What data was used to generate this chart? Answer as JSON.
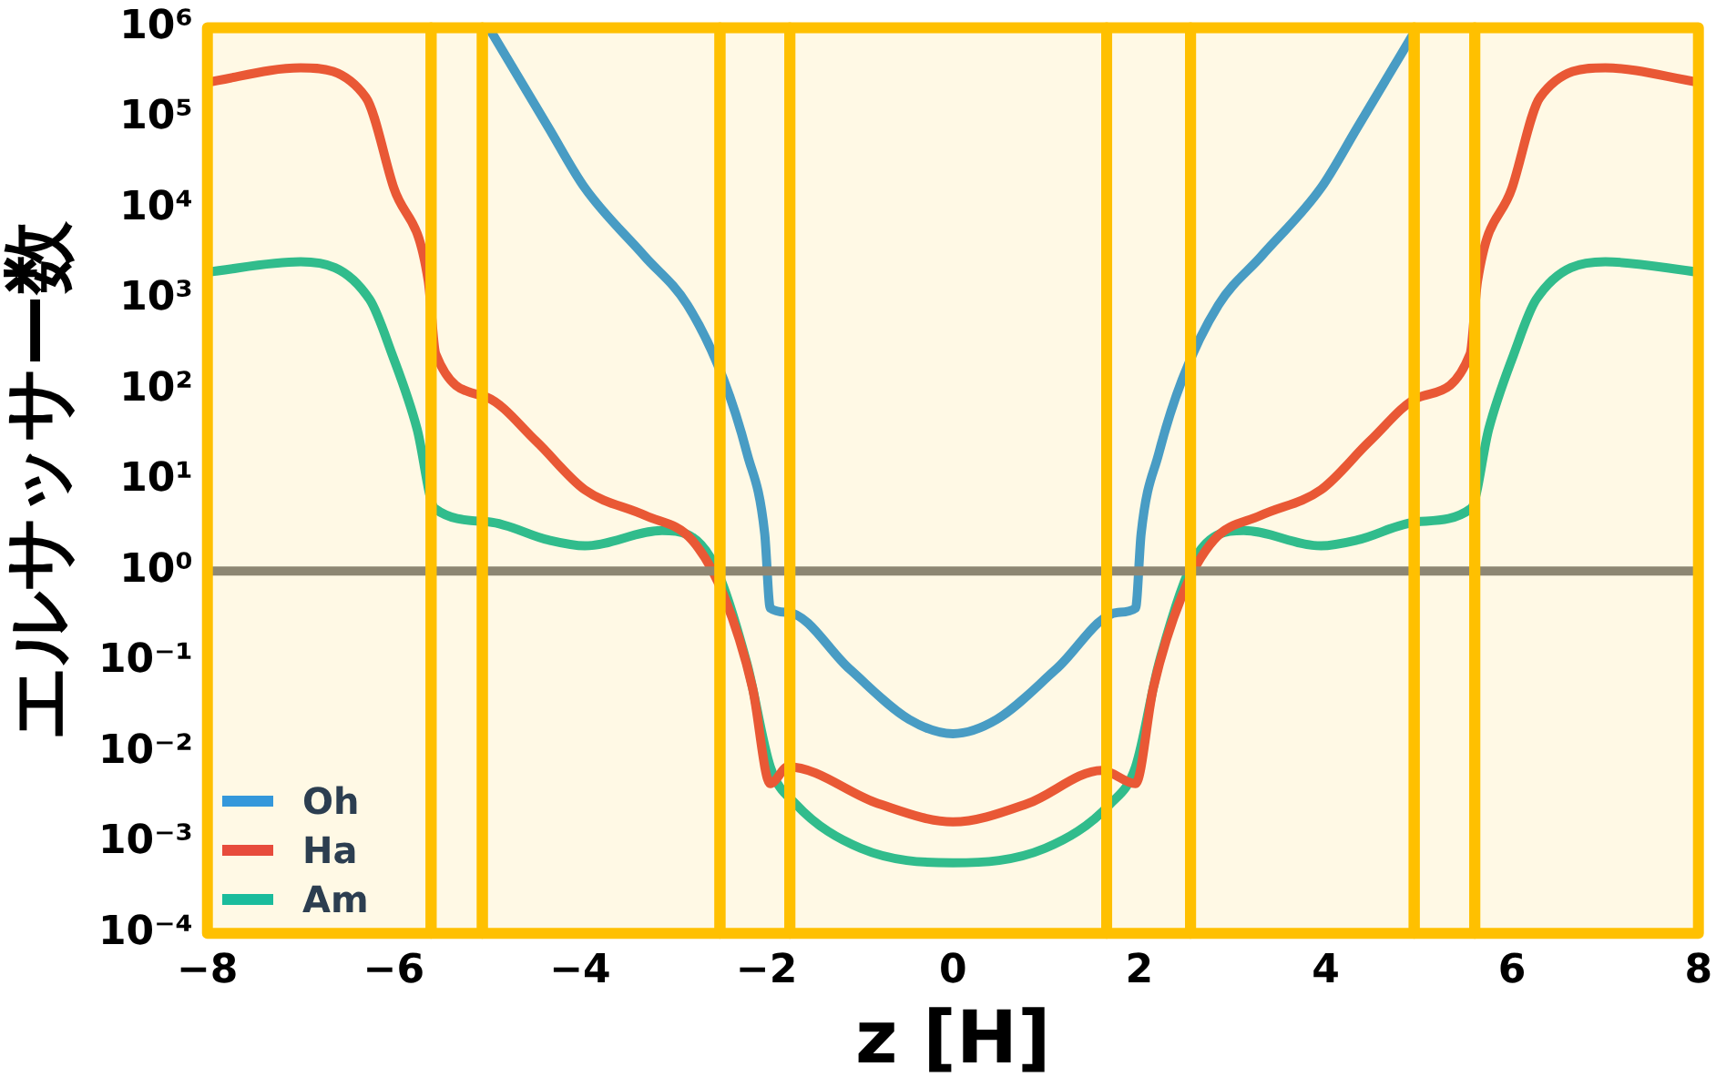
{
  "chart_data": {
    "type": "line",
    "ylabel": "エルサッサー数",
    "xlabel": "z [H]",
    "log": "y",
    "grid": false,
    "legend": "bottom left",
    "marker": "none",
    "line_style": "solid",
    "xlim": [
      -8,
      8
    ],
    "xticks": [
      {
        "value": -8,
        "label": "−8"
      },
      {
        "value": -6,
        "label": "−6"
      },
      {
        "value": -4,
        "label": "−4"
      },
      {
        "value": -2,
        "label": "−2"
      },
      0,
      2,
      4,
      6,
      8
    ],
    "ylim": [
      0.0001,
      1000000
    ],
    "yticks": [
      {
        "value": 0.0001,
        "label": "10⁻⁴"
      },
      {
        "value": 0.001,
        "label": "10⁻³"
      },
      {
        "value": 0.01,
        "label": "10⁻²"
      },
      {
        "value": 0.1,
        "label": "10⁻¹"
      },
      {
        "value": 1,
        "label": "10⁰"
      },
      {
        "value": 10,
        "label": "10¹"
      },
      {
        "value": 100,
        "label": "10²"
      },
      {
        "value": 1000,
        "label": "10³"
      },
      {
        "value": 10000,
        "label": "10⁴"
      },
      {
        "value": 100000,
        "label": "10⁵"
      },
      {
        "value": 1000000,
        "label": "10⁶"
      }
    ],
    "series": [
      {
        "name": "Oh",
        "color": "#3498db",
        "x": [
          -4.98,
          -4.34,
          -3.95,
          -3.31,
          -2.85,
          -2.46,
          -2.21,
          -2.02,
          -1.96,
          -1.77,
          -1.11,
          -0.47,
          0,
          0.47,
          1.11,
          1.77,
          1.96,
          2.02,
          2.21,
          2.46,
          2.85,
          3.31,
          3.95,
          4.34,
          4.98
        ],
        "values": [
          1000000,
          79000,
          17000,
          3000,
          870,
          130,
          20,
          2.6,
          0.39,
          0.35,
          0.083,
          0.023,
          0.016,
          0.023,
          0.083,
          0.35,
          0.39,
          2.6,
          20,
          130,
          870,
          3000,
          17000,
          79000,
          1000000
        ]
      },
      {
        "name": "Ha",
        "color": "#e74c3c",
        "x": [
          -8,
          -7,
          -6.3,
          -6,
          -5.63,
          -5.55,
          -5,
          -4.47,
          -3.95,
          -3.3,
          -2.8,
          -2.46,
          -2.15,
          -1.96,
          -1.77,
          -0.8,
          0,
          0.8,
          1.6,
          1.96,
          2.15,
          2.46,
          2.8,
          3.3,
          3.95,
          4.47,
          5,
          5.55,
          5.63,
          6,
          6.3,
          7,
          8
        ],
        "values": [
          250000,
          360000,
          170000,
          17000,
          1600,
          250,
          83,
          27,
          7.9,
          4.1,
          2.2,
          0.54,
          0.051,
          0.0045,
          0.0069,
          0.0027,
          0.0017,
          0.0027,
          0.0063,
          0.0045,
          0.051,
          0.54,
          2.2,
          4.1,
          7.9,
          27,
          83,
          250,
          1600,
          17000,
          170000,
          360000,
          250000
        ]
      },
      {
        "name": "Am",
        "color": "#1abc9c",
        "x": [
          -8,
          -7,
          -6.26,
          -6.02,
          -5.75,
          -5.56,
          -4.98,
          -4.34,
          -3.95,
          -3.12,
          -2.6,
          -2.21,
          -1.96,
          -1.69,
          -0.99,
          0,
          0.99,
          1.69,
          1.96,
          2.21,
          2.6,
          3.12,
          3.95,
          4.34,
          4.98,
          5.56,
          5.75,
          6.02,
          6.26,
          7,
          8
        ],
        "values": [
          2000,
          2600,
          1000,
          250,
          37,
          4.9,
          3.5,
          2.2,
          1.9,
          2.8,
          1.4,
          0.095,
          0.0069,
          0.0027,
          0.00087,
          0.0006,
          0.00087,
          0.0027,
          0.0069,
          0.095,
          1.4,
          2.8,
          1.9,
          2.2,
          3.5,
          4.9,
          37,
          250,
          1000,
          2600,
          2000
        ]
      }
    ],
    "ref_lines": [
      {
        "axis": "y",
        "value": 1,
        "label": null,
        "color": "#808080"
      }
    ],
    "bands": [
      {
        "axis": "x",
        "from": -8,
        "to": -5.6,
        "label": null,
        "color": "#ffc000"
      },
      {
        "axis": "x",
        "from": -5.6,
        "to": -5.05,
        "label": null,
        "color": "#ffc000"
      },
      {
        "axis": "x",
        "from": -5.05,
        "to": -2.5,
        "label": null,
        "color": "#ffc000"
      },
      {
        "axis": "x",
        "from": -2.5,
        "to": -1.75,
        "label": null,
        "color": "#ffc000"
      },
      {
        "axis": "x",
        "from": -1.75,
        "to": 1.65,
        "label": null,
        "color": "#ffc000"
      },
      {
        "axis": "x",
        "from": 1.65,
        "to": 2.55,
        "label": null,
        "color": "#ffc000"
      },
      {
        "axis": "x",
        "from": 2.55,
        "to": 4.95,
        "label": null,
        "color": "#ffc000"
      },
      {
        "axis": "x",
        "from": 4.95,
        "to": 5.6,
        "label": null,
        "color": "#ffc000"
      },
      {
        "axis": "x",
        "from": 5.6,
        "to": 8,
        "label": null,
        "color": "#ffc000"
      }
    ]
  }
}
